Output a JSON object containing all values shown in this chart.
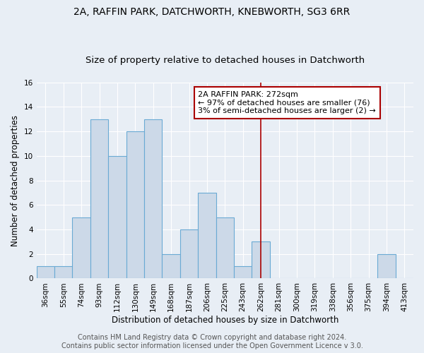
{
  "title_line1": "2A, RAFFIN PARK, DATCHWORTH, KNEBWORTH, SG3 6RR",
  "title_line2": "Size of property relative to detached houses in Datchworth",
  "xlabel": "Distribution of detached houses by size in Datchworth",
  "ylabel": "Number of detached properties",
  "categories": [
    "36sqm",
    "55sqm",
    "74sqm",
    "93sqm",
    "112sqm",
    "130sqm",
    "149sqm",
    "168sqm",
    "187sqm",
    "206sqm",
    "225sqm",
    "243sqm",
    "262sqm",
    "281sqm",
    "300sqm",
    "319sqm",
    "338sqm",
    "356sqm",
    "375sqm",
    "394sqm",
    "413sqm"
  ],
  "values": [
    1,
    1,
    5,
    13,
    10,
    12,
    13,
    2,
    4,
    7,
    5,
    1,
    3,
    0,
    0,
    0,
    0,
    0,
    0,
    2,
    0
  ],
  "bar_color": "#ccd9e8",
  "bar_edge_color": "#6aaad4",
  "red_line_index": 12,
  "red_line_color": "#aa0000",
  "annotation_text": "2A RAFFIN PARK: 272sqm\n← 97% of detached houses are smaller (76)\n3% of semi-detached houses are larger (2) →",
  "annotation_box_color": "white",
  "annotation_box_edge_color": "#aa0000",
  "ylim": [
    0,
    16
  ],
  "yticks": [
    0,
    2,
    4,
    6,
    8,
    10,
    12,
    14,
    16
  ],
  "footer_text": "Contains HM Land Registry data © Crown copyright and database right 2024.\nContains public sector information licensed under the Open Government Licence v 3.0.",
  "background_color": "#e8eef5",
  "plot_background_color": "#e8eef5",
  "grid_color": "#ffffff",
  "title_fontsize": 10,
  "subtitle_fontsize": 9.5,
  "axis_label_fontsize": 8.5,
  "tick_fontsize": 7.5,
  "footer_fontsize": 7,
  "annotation_fontsize": 8
}
